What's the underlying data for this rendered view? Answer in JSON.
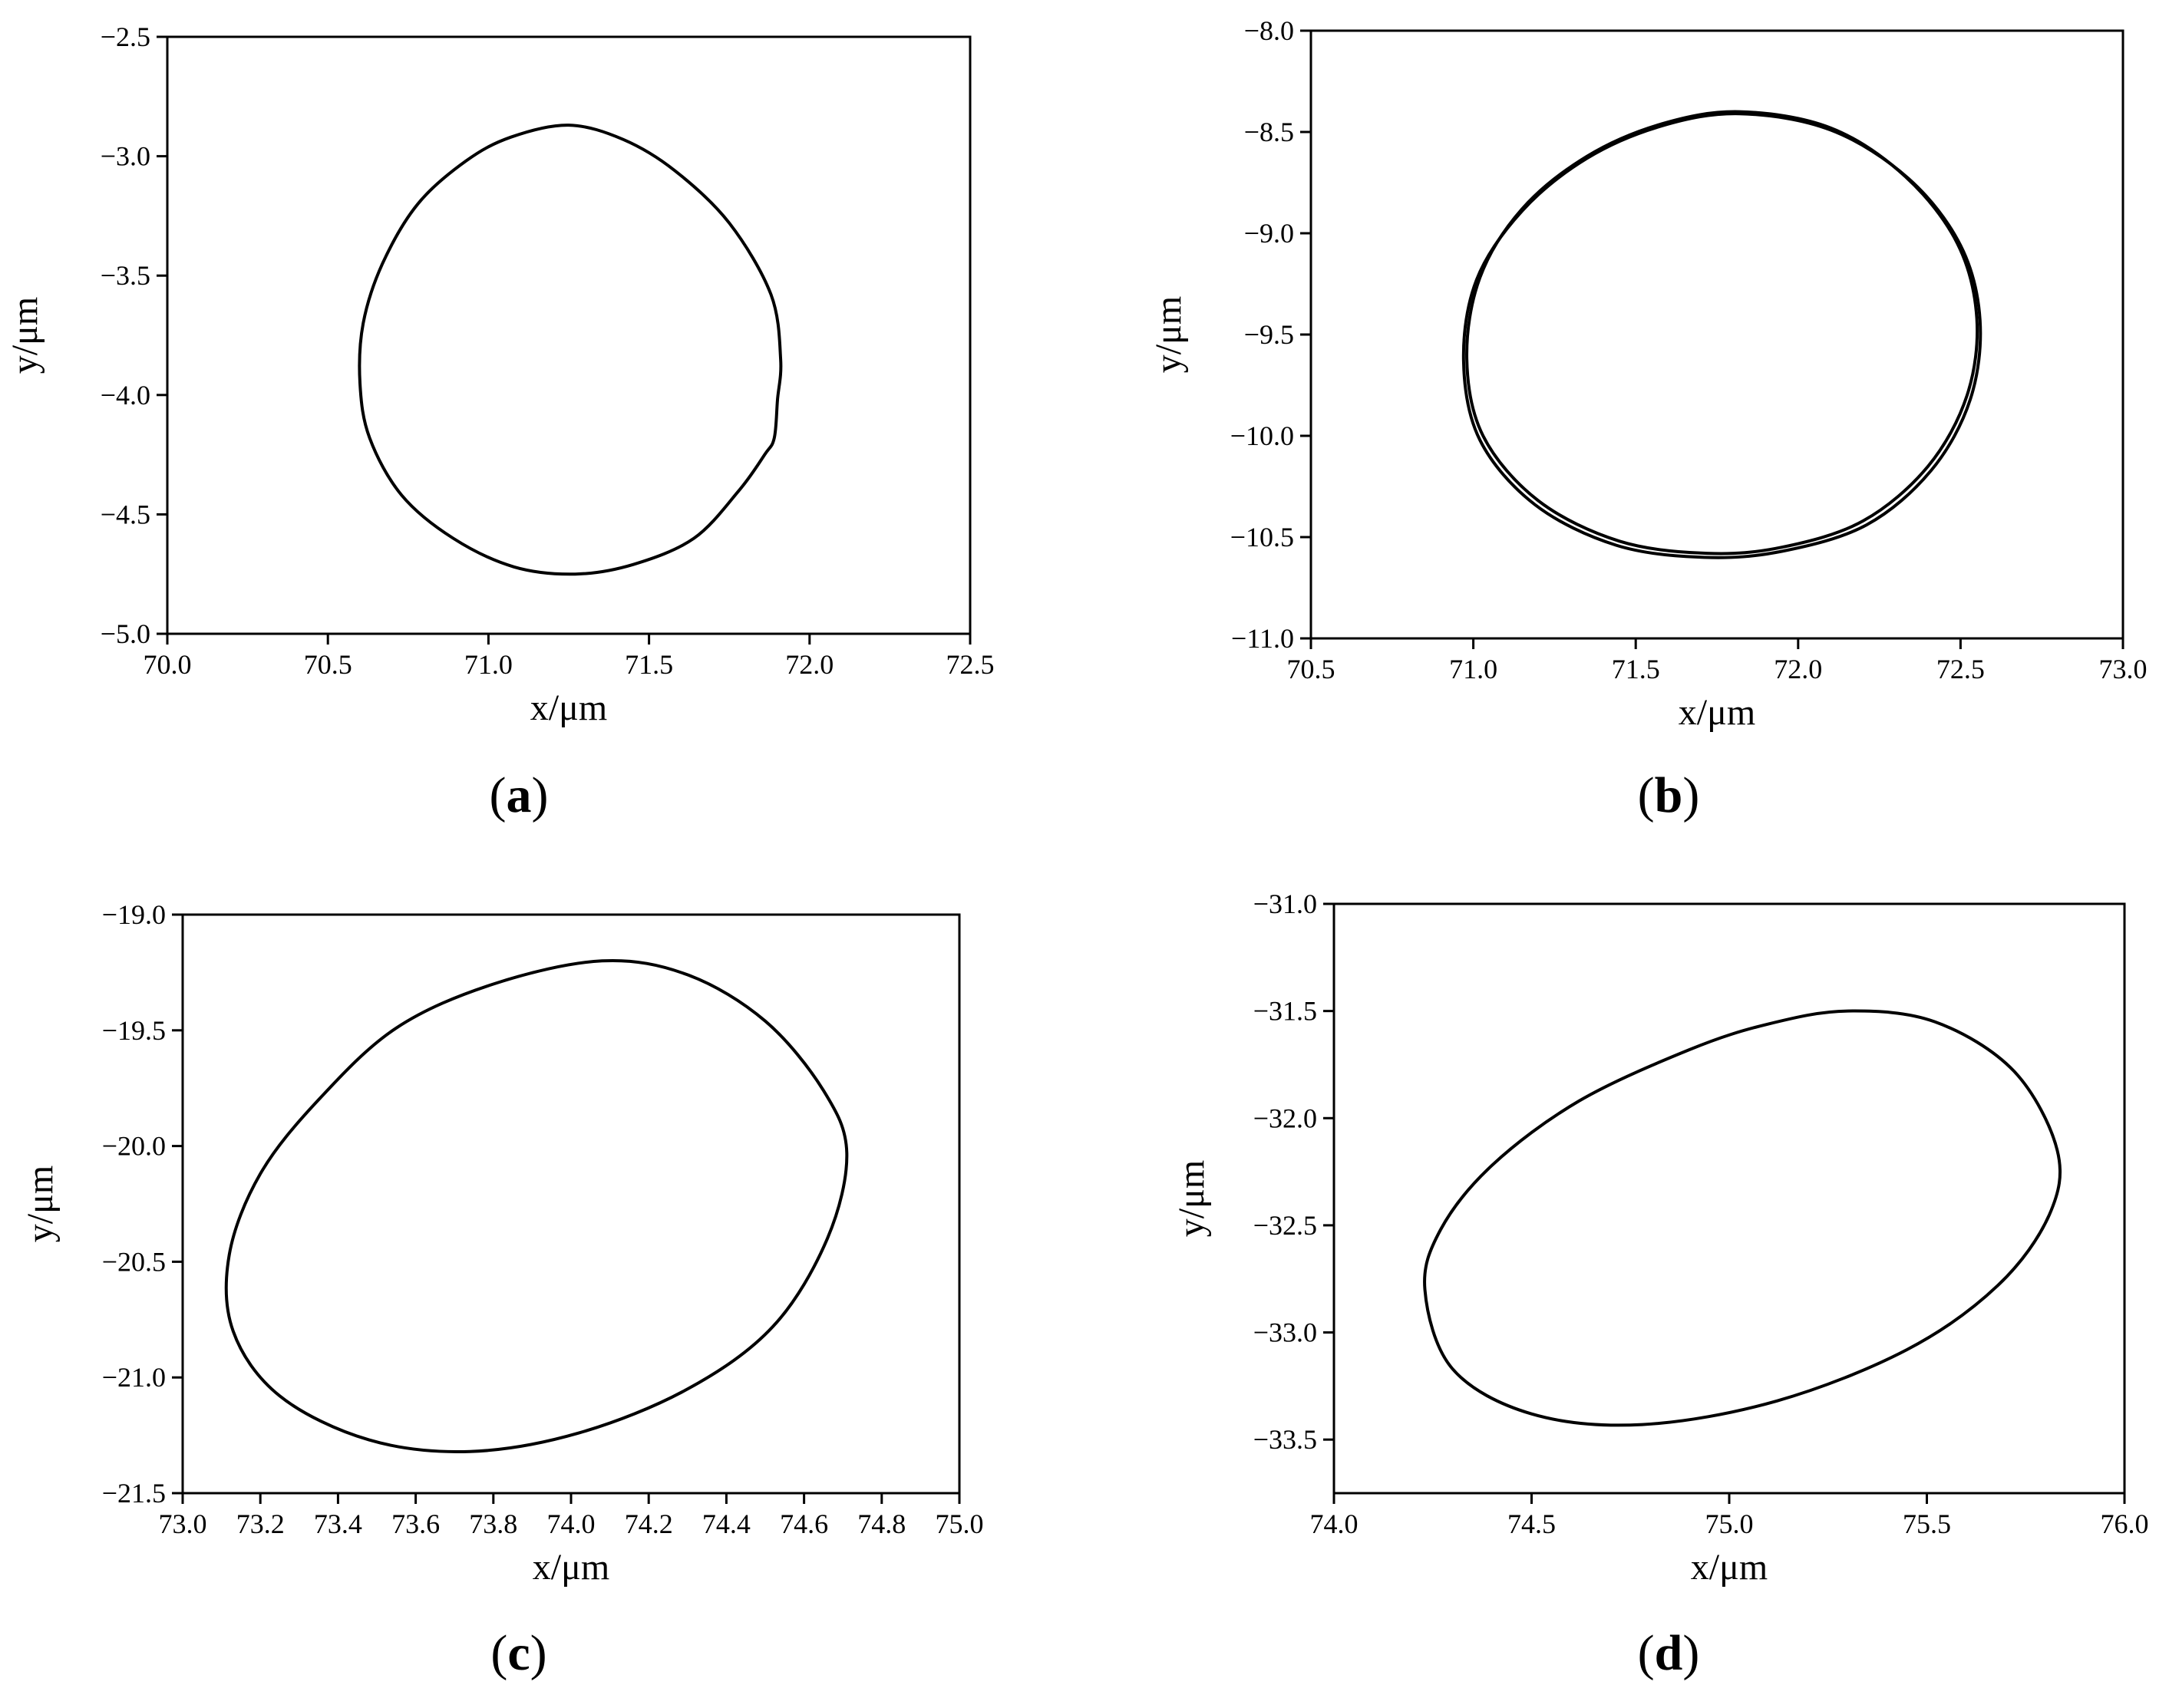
{
  "figure": {
    "panels": [
      {
        "label_open": "(",
        "letter": "a",
        "label_close": ")"
      },
      {
        "label_open": "(",
        "letter": "b",
        "label_close": ")"
      },
      {
        "label_open": "(",
        "letter": "c",
        "label_close": ")"
      },
      {
        "label_open": "(",
        "letter": "d",
        "label_close": ")"
      }
    ]
  },
  "chart_data": [
    {
      "type": "line",
      "xlabel": "x/μm",
      "ylabel": "y/μm",
      "xlim": [
        70.0,
        72.5
      ],
      "ylim": [
        -5.0,
        -2.5
      ],
      "xticks": [
        "70.0",
        "70.5",
        "71.0",
        "71.5",
        "72.0",
        "72.5"
      ],
      "yticks": [
        "-2.5",
        "-3.0",
        "-3.5",
        "-4.0",
        "-4.5",
        "-5.0"
      ],
      "grid": false,
      "legend": "none",
      "series": [
        {
          "x": [
            71.25,
            71.42,
            71.58,
            71.75,
            71.88,
            71.91,
            71.9,
            71.89,
            71.86,
            71.78,
            71.64,
            71.45,
            71.27,
            71.08,
            70.89,
            70.73,
            70.63,
            70.6,
            70.61,
            70.67,
            70.78,
            70.93,
            71.07,
            71.25
          ],
          "y": [
            -2.87,
            -2.93,
            -3.06,
            -3.28,
            -3.58,
            -3.85,
            -4.02,
            -4.18,
            -4.25,
            -4.4,
            -4.6,
            -4.71,
            -4.75,
            -4.72,
            -4.6,
            -4.42,
            -4.18,
            -3.95,
            -3.7,
            -3.45,
            -3.2,
            -3.02,
            -2.92,
            -2.87
          ]
        }
      ]
    },
    {
      "type": "line",
      "xlabel": "x/μm",
      "ylabel": "y/μm",
      "xlim": [
        70.5,
        73.0
      ],
      "ylim": [
        -11.0,
        -8.0
      ],
      "xticks": [
        "70.5",
        "71.0",
        "71.5",
        "72.0",
        "72.5",
        "73.0"
      ],
      "yticks": [
        "-8.0",
        "-8.5",
        "-9.0",
        "-9.5",
        "-10.0",
        "-10.5",
        "-11.0"
      ],
      "grid": false,
      "legend": "none",
      "series": [
        {
          "x": [
            71.82,
            72.1,
            72.33,
            72.49,
            72.55,
            72.52,
            72.4,
            72.2,
            71.95,
            71.72,
            71.45,
            71.2,
            71.03,
            70.98,
            71.02,
            71.15,
            71.35,
            71.58,
            71.82
          ],
          "y": [
            -8.4,
            -8.48,
            -8.72,
            -9.05,
            -9.42,
            -9.8,
            -10.15,
            -10.42,
            -10.55,
            -10.58,
            -10.52,
            -10.32,
            -10.0,
            -9.62,
            -9.22,
            -8.88,
            -8.62,
            -8.46,
            -8.4
          ]
        },
        {
          "x": [
            71.82,
            72.1,
            72.34,
            72.5,
            72.56,
            72.53,
            72.41,
            72.21,
            71.95,
            71.71,
            71.44,
            71.19,
            71.02,
            70.97,
            71.01,
            71.15,
            71.35,
            71.58,
            71.82
          ],
          "y": [
            -8.41,
            -8.49,
            -8.73,
            -9.06,
            -9.43,
            -9.82,
            -10.17,
            -10.44,
            -10.57,
            -10.6,
            -10.54,
            -10.34,
            -10.02,
            -9.63,
            -9.23,
            -8.89,
            -8.63,
            -8.47,
            -8.41
          ]
        }
      ]
    },
    {
      "type": "line",
      "xlabel": "x/μm",
      "ylabel": "y/μm",
      "xlim": [
        73.0,
        75.0
      ],
      "ylim": [
        -21.5,
        -19.0
      ],
      "xticks": [
        "73.0",
        "73.2",
        "73.4",
        "73.6",
        "73.8",
        "74.0",
        "74.2",
        "74.4",
        "74.6",
        "74.8",
        "75.0"
      ],
      "yticks": [
        "-19.0",
        "-19.5",
        "-20.0",
        "-20.5",
        "-21.0",
        "-21.5"
      ],
      "grid": false,
      "legend": "none",
      "series": [
        {
          "x": [
            74.08,
            74.3,
            74.5,
            74.65,
            74.71,
            74.66,
            74.52,
            74.3,
            74.02,
            73.74,
            73.48,
            73.25,
            73.13,
            73.12,
            73.2,
            73.35,
            73.55,
            73.8,
            74.08
          ],
          "y": [
            -19.2,
            -19.26,
            -19.46,
            -19.76,
            -20.03,
            -20.4,
            -20.78,
            -21.05,
            -21.24,
            -21.32,
            -21.27,
            -21.08,
            -20.8,
            -20.47,
            -20.12,
            -19.8,
            -19.49,
            -19.3,
            -19.2
          ]
        }
      ]
    },
    {
      "type": "line",
      "xlabel": "x/μm",
      "ylabel": "y/μm",
      "xlim": [
        74.0,
        76.0
      ],
      "ylim": [
        -33.75,
        -31.0
      ],
      "xticks": [
        "74.0",
        "74.5",
        "75.0",
        "75.5",
        "76.0"
      ],
      "yticks": [
        "-31.0",
        "-31.5",
        "-32.0",
        "-32.5",
        "-33.0",
        "-33.5"
      ],
      "grid": false,
      "legend": "none",
      "series": [
        {
          "x": [
            75.3,
            75.52,
            75.72,
            75.83,
            75.81,
            75.68,
            75.45,
            75.12,
            74.78,
            74.5,
            74.3,
            74.23,
            74.27,
            74.4,
            74.62,
            74.9,
            75.1,
            75.3
          ],
          "y": [
            -31.5,
            -31.55,
            -31.78,
            -32.15,
            -32.45,
            -32.78,
            -33.08,
            -33.32,
            -33.43,
            -33.38,
            -33.17,
            -32.8,
            -32.52,
            -32.22,
            -31.92,
            -31.68,
            -31.56,
            -31.5
          ]
        }
      ]
    }
  ]
}
